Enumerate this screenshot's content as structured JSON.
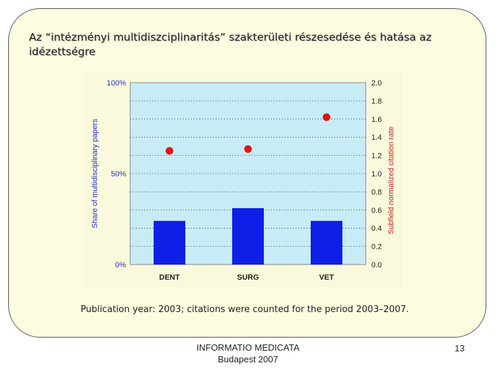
{
  "slide": {
    "title": "Az “intézményi multidiszciplinaritás” szakterületi részesedése és hatása az idézettségre",
    "caption": "Publication year: 2003; citations were counted for the period 2003–2007.",
    "footer_line1": "INFORMATIO MEDICATA",
    "footer_line2": "Budapest 2007",
    "page_number": "13"
  },
  "chart_data": {
    "type": "bar",
    "categories": [
      "DENT",
      "SURG",
      "VET"
    ],
    "series": [
      {
        "name": "Share of multidisciplinary papers",
        "axis": "left",
        "kind": "bar",
        "values": [
          24,
          31,
          24
        ],
        "color": "#0f1fe8"
      },
      {
        "name": "Subfield normalized citation rate",
        "axis": "right",
        "kind": "scatter",
        "values": [
          1.25,
          1.27,
          1.62
        ],
        "color": "#e81010"
      }
    ],
    "ylabel_left": "Share of  multidisciplinary  papers",
    "ylabel_right": "Subfield normalized citation rate",
    "ylim_left": [
      0,
      100
    ],
    "ylim_right": [
      0,
      2.0
    ],
    "yticks_left": [
      "0%",
      "50%",
      "100%"
    ],
    "yticks_left_values": [
      0,
      50,
      100
    ],
    "yticks_right": [
      "0.0",
      "0.2",
      "0.4",
      "0.6",
      "0.8",
      "1.0",
      "1.2",
      "1.4",
      "1.6",
      "1.8",
      "2.0"
    ],
    "grid": true,
    "plot_background": "#c8ecf6",
    "left_axis_color": "#2233cc",
    "right_axis_color": "#cc2222"
  }
}
